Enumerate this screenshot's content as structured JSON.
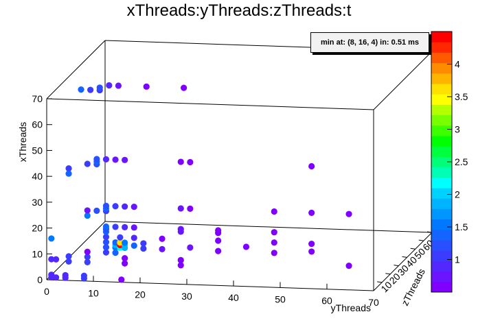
{
  "chart_data": {
    "type": "scatter",
    "title": "xThreads:yThreads:zThreads:t",
    "xlabel": "yThreads",
    "ylabel": "xThreads",
    "zlabel": "zThreads",
    "xlim": [
      0,
      70
    ],
    "ylim": [
      0,
      70
    ],
    "zlim": [
      0,
      70
    ],
    "x_ticks": [
      "0",
      "10",
      "20",
      "30",
      "40",
      "50",
      "60",
      "70"
    ],
    "y_ticks": [
      "0",
      "10",
      "20",
      "30",
      "40",
      "50",
      "60",
      "70"
    ],
    "z_ticks": [
      "10",
      "20",
      "30",
      "40",
      "50",
      "60",
      "70"
    ],
    "color_scale": {
      "min": 0.5,
      "max": 4.5,
      "tick_labels": [
        "1",
        "1.5",
        "2",
        "2.5",
        "3",
        "3.5",
        "4"
      ],
      "tick_values": [
        1,
        1.5,
        2,
        2.5,
        3,
        3.5,
        4
      ],
      "colors": [
        "#7f00ff",
        "#6a14ff",
        "#5228ff",
        "#3c3cff",
        "#2850ff",
        "#1464ff",
        "#0078ff",
        "#0096ff",
        "#00b4ff",
        "#00d2ff",
        "#00ffff",
        "#00ffb4",
        "#00ff78",
        "#00ff3c",
        "#00ff00",
        "#3cff00",
        "#78ff00",
        "#b4ff00",
        "#ffff00",
        "#ffe100",
        "#ffb400",
        "#ff8c00",
        "#ff5a00",
        "#ff2800",
        "#ff0000"
      ]
    },
    "annotation": "min at: (8, 16, 4) in: 0.51 ms",
    "points": [
      {
        "x": 1,
        "y": 1,
        "z": 0,
        "t": 0.9
      },
      {
        "x": 2,
        "y": 1,
        "z": 0,
        "t": 0.9
      },
      {
        "x": 1,
        "y": 2,
        "z": 0,
        "t": 0.9
      },
      {
        "x": 2,
        "y": 4,
        "z": 0,
        "t": 0.9
      },
      {
        "x": 1,
        "y": 4,
        "z": 0,
        "t": 0.9
      },
      {
        "x": 1,
        "y": 8,
        "z": 0,
        "t": 1.0
      },
      {
        "x": 2,
        "y": 8,
        "z": 0,
        "t": 1.0
      },
      {
        "x": 1,
        "y": 16,
        "z": 0,
        "t": 0.6
      },
      {
        "x": 8,
        "y": 1,
        "z": 0,
        "t": 0.9
      },
      {
        "x": 8,
        "y": 2,
        "z": 0,
        "t": 0.9
      },
      {
        "x": 16,
        "y": 1,
        "z": 0,
        "t": 1.5
      },
      {
        "x": 6,
        "y": 4,
        "z": 4,
        "t": 1.0
      },
      {
        "x": 8,
        "y": 4,
        "z": 4,
        "t": 1.0
      },
      {
        "x": 6,
        "y": 8,
        "z": 4,
        "t": 1.0
      },
      {
        "x": 8,
        "y": 8,
        "z": 4,
        "t": 1.0
      },
      {
        "x": 10,
        "y": 8,
        "z": 4,
        "t": 0.6
      },
      {
        "x": 6,
        "y": 16,
        "z": 4,
        "t": 0.6
      },
      {
        "x": 8,
        "y": 16,
        "z": 4,
        "t": 0.6
      },
      {
        "x": 6,
        "y": 28,
        "z": 4,
        "t": 0.6
      },
      {
        "x": 8,
        "y": 28,
        "z": 4,
        "t": 0.6
      },
      {
        "x": 8,
        "y": 64,
        "z": 4,
        "t": 0.6
      },
      {
        "x": 10,
        "y": 12,
        "z": 4,
        "t": 1.1
      },
      {
        "x": 12,
        "y": 12,
        "z": 4,
        "t": 1.2
      },
      {
        "x": 10,
        "y": 14,
        "z": 4,
        "t": 1.3
      },
      {
        "x": 12,
        "y": 14,
        "z": 4,
        "t": 1.6
      },
      {
        "x": 13,
        "y": 14,
        "z": 4,
        "t": 1.9
      },
      {
        "x": 14,
        "y": 14,
        "z": 4,
        "t": 1.4
      },
      {
        "x": 12,
        "y": 15,
        "z": 4,
        "t": 2.2
      },
      {
        "x": 13,
        "y": 15,
        "z": 4,
        "t": 4.4
      },
      {
        "x": 14,
        "y": 15,
        "z": 4,
        "t": 3.6
      },
      {
        "x": 13,
        "y": 16,
        "z": 4,
        "t": 2.6
      },
      {
        "x": 12,
        "y": 16,
        "z": 4,
        "t": 1.8
      },
      {
        "x": 14,
        "y": 16,
        "z": 4,
        "t": 1.5
      },
      {
        "x": 13,
        "y": 18,
        "z": 4,
        "t": 1.4
      },
      {
        "x": 12,
        "y": 20,
        "z": 4,
        "t": 1.1
      },
      {
        "x": 14,
        "y": 20,
        "z": 4,
        "t": 1.1
      },
      {
        "x": 12,
        "y": 24,
        "z": 4,
        "t": 0.7
      },
      {
        "x": 13,
        "y": 30,
        "z": 4,
        "t": 0.7
      },
      {
        "x": 12,
        "y": 36,
        "z": 4,
        "t": 0.6
      },
      {
        "x": 14,
        "y": 42,
        "z": 4,
        "t": 0.6
      },
      {
        "x": 12,
        "y": 48,
        "z": 4,
        "t": 0.6
      },
      {
        "x": 13,
        "y": 56,
        "z": 4,
        "t": 0.6
      },
      {
        "x": 14,
        "y": 12,
        "z": 4,
        "t": 1.2
      },
      {
        "x": 16,
        "y": 12,
        "z": 4,
        "t": 1.0
      },
      {
        "x": 16,
        "y": 15,
        "z": 4,
        "t": 1.1
      },
      {
        "x": 16,
        "y": 18,
        "z": 4,
        "t": 0.9
      },
      {
        "x": 16,
        "y": 24,
        "z": 4,
        "t": 0.6
      },
      {
        "x": 16,
        "y": 56,
        "z": 4,
        "t": 0.6
      },
      {
        "x": 16,
        "y": 48,
        "z": 4,
        "t": 0.6
      },
      {
        "x": 16,
        "y": 36,
        "z": 4,
        "t": 0.6
      },
      {
        "x": 18,
        "y": 12,
        "z": 4,
        "t": 1.4
      },
      {
        "x": 19,
        "y": 12,
        "z": 4,
        "t": 1.2
      },
      {
        "x": 20,
        "y": 12,
        "z": 4,
        "t": 1.3
      },
      {
        "x": 20,
        "y": 14,
        "z": 4,
        "t": 1.1
      },
      {
        "x": 20,
        "y": 16,
        "z": 4,
        "t": 0.9
      },
      {
        "x": 20,
        "y": 18,
        "z": 4,
        "t": 0.8
      },
      {
        "x": 20,
        "y": 28,
        "z": 4,
        "t": 0.7
      },
      {
        "x": 20,
        "y": 36,
        "z": 4,
        "t": 0.6
      },
      {
        "x": 20,
        "y": 48,
        "z": 4,
        "t": 0.6
      },
      {
        "x": 19,
        "y": 28,
        "z": 4,
        "t": 0.7
      },
      {
        "x": 19,
        "y": 36,
        "z": 4,
        "t": 0.6
      },
      {
        "x": 24,
        "y": 8,
        "z": 4,
        "t": 1.5
      },
      {
        "x": 26,
        "y": 10,
        "z": 4,
        "t": 1.2
      },
      {
        "x": 26,
        "y": 12,
        "z": 4,
        "t": 1.1
      },
      {
        "x": 27,
        "y": 12,
        "z": 4,
        "t": 1.4
      },
      {
        "x": 28,
        "y": 12,
        "z": 4,
        "t": 1.2
      },
      {
        "x": 28,
        "y": 14,
        "z": 4,
        "t": 1.0
      },
      {
        "x": 28,
        "y": 16,
        "z": 4,
        "t": 0.9
      },
      {
        "x": 28,
        "y": 18,
        "z": 4,
        "t": 0.8
      },
      {
        "x": 28,
        "y": 28,
        "z": 4,
        "t": 0.7
      },
      {
        "x": 28,
        "y": 30,
        "z": 4,
        "t": 0.6
      },
      {
        "x": 28,
        "y": 48,
        "z": 4,
        "t": 0.6
      },
      {
        "x": 28,
        "y": 56,
        "z": 4,
        "t": 0.6
      },
      {
        "x": 28,
        "y": 64,
        "z": 4,
        "t": 0.6
      },
      {
        "x": 26,
        "y": 8,
        "z": 4,
        "t": 0.8
      },
      {
        "x": 42,
        "y": 4,
        "z": 4,
        "t": 1.1
      },
      {
        "x": 44,
        "y": 8,
        "z": 4,
        "t": 1.0
      },
      {
        "x": 44,
        "y": 10,
        "z": 4,
        "t": 1.2
      },
      {
        "x": 45,
        "y": 10,
        "z": 4,
        "t": 1.4
      },
      {
        "x": 46,
        "y": 10,
        "z": 4,
        "t": 1.2
      },
      {
        "x": 46,
        "y": 12,
        "z": 4,
        "t": 0.9
      },
      {
        "x": 46,
        "y": 14,
        "z": 4,
        "t": 0.8
      },
      {
        "x": 46,
        "y": 16,
        "z": 4,
        "t": 0.7
      },
      {
        "x": 46,
        "y": 28,
        "z": 4,
        "t": 0.6
      },
      {
        "x": 46,
        "y": 30,
        "z": 4,
        "t": 0.6
      },
      {
        "x": 46,
        "y": 56,
        "z": 4,
        "t": 0.6
      },
      {
        "x": 40,
        "y": 4,
        "z": 4,
        "t": 1.4
      },
      {
        "x": 64,
        "y": 2,
        "z": 30,
        "t": 1.4
      },
      {
        "x": 64,
        "y": 4,
        "z": 30,
        "t": 1.1
      },
      {
        "x": 64,
        "y": 6,
        "z": 30,
        "t": 1.0
      },
      {
        "x": 65,
        "y": 6,
        "z": 30,
        "t": 1.2
      },
      {
        "x": 66,
        "y": 8,
        "z": 30,
        "t": 0.9
      },
      {
        "x": 66,
        "y": 10,
        "z": 30,
        "t": 0.7
      },
      {
        "x": 66,
        "y": 16,
        "z": 30,
        "t": 0.6
      },
      {
        "x": 66,
        "y": 24,
        "z": 30,
        "t": 0.6
      }
    ]
  }
}
